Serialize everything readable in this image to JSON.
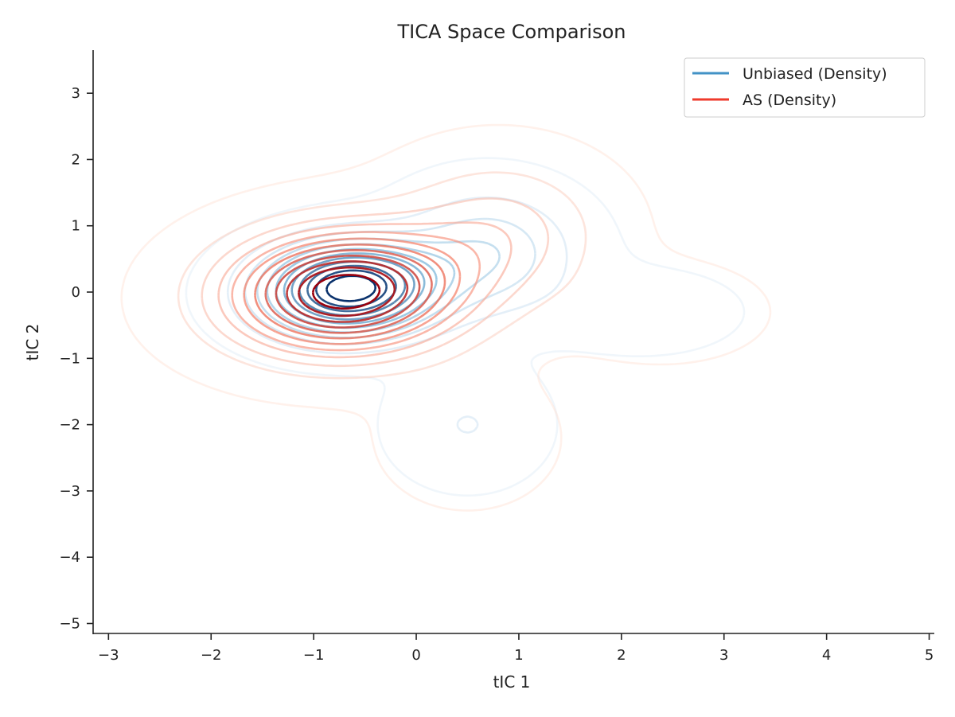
{
  "chart_data": {
    "type": "contour",
    "title": "TICA Space Comparison",
    "xlabel": "tIC 1",
    "ylabel": "tIC 2",
    "xlim": [
      -3.15,
      5.05
    ],
    "ylim": [
      -5.15,
      3.65
    ],
    "x_ticks": [
      -3,
      -2,
      -1,
      0,
      1,
      2,
      3,
      4,
      5
    ],
    "y_ticks": [
      -5,
      -4,
      -3,
      -2,
      -1,
      0,
      1,
      2,
      3
    ],
    "legend_position": "top-right",
    "series": [
      {
        "name": "Unbiased (Density)",
        "color": "#4292c6",
        "levels": 12,
        "components": [
          {
            "mean": [
              -0.65,
              0.05
            ],
            "sd": [
              0.55,
              0.45
            ],
            "rho": 0.05,
            "weight": 1.0
          },
          {
            "mean": [
              0.7,
              0.6
            ],
            "sd": [
              0.55,
              0.6
            ],
            "rho": 0.0,
            "weight": 0.25
          },
          {
            "mean": [
              0.5,
              -2.0
            ],
            "sd": [
              0.45,
              0.55
            ],
            "rho": 0.0,
            "weight": 0.1
          },
          {
            "mean": [
              2.2,
              -0.3
            ],
            "sd": [
              0.6,
              0.4
            ],
            "rho": 0.0,
            "weight": 0.06
          }
        ]
      },
      {
        "name": "AS (Density)",
        "color": "#ef3b2c",
        "levels": 12,
        "components": [
          {
            "mean": [
              -0.7,
              0.0
            ],
            "sd": [
              0.75,
              0.6
            ],
            "rho": 0.05,
            "weight": 1.0
          },
          {
            "mean": [
              0.8,
              0.9
            ],
            "sd": [
              0.65,
              0.7
            ],
            "rho": 0.0,
            "weight": 0.22
          },
          {
            "mean": [
              0.5,
              -2.2
            ],
            "sd": [
              0.5,
              0.6
            ],
            "rho": 0.0,
            "weight": 0.08
          },
          {
            "mean": [
              2.4,
              -0.3
            ],
            "sd": [
              0.6,
              0.45
            ],
            "rho": 0.0,
            "weight": 0.07
          }
        ]
      }
    ]
  }
}
